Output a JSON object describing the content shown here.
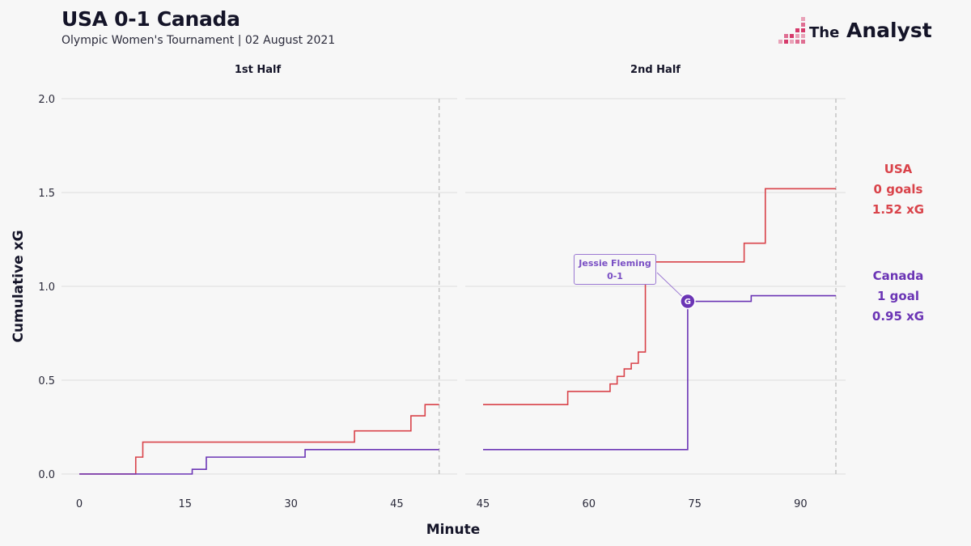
{
  "header": {
    "title": "USA 0-1 Canada",
    "subtitle": "Olympic Women's Tournament | 02 August 2021"
  },
  "brand": {
    "logo_text_small": "The",
    "logo_text_large": "Analyst",
    "accent_color": "#d63a6b"
  },
  "colors": {
    "usa": "#d9434a",
    "canada": "#6b35b5",
    "grid": "#dcdcdc"
  },
  "teams": {
    "usa": {
      "name": "USA",
      "goals": "0 goals",
      "xg": "1.52 xG"
    },
    "canada": {
      "name": "Canada",
      "goals": "1 goal",
      "xg": "0.95 xG"
    }
  },
  "annotation": {
    "player": "Jessie Fleming",
    "score": "0-1",
    "marker": "G"
  },
  "chart_data": {
    "type": "line",
    "step": true,
    "xlabel": "Minute",
    "ylabel": "Cumulative xG",
    "ylim": [
      0,
      2.0
    ],
    "y_ticks": [
      0.0,
      0.5,
      1.0,
      1.5,
      2.0
    ],
    "y_tick_labels": [
      "0.0",
      "0.5",
      "1.0",
      "1.5",
      "2.0"
    ],
    "grid": true,
    "legend": "right",
    "facets": [
      {
        "label": "1st Half",
        "xlim": [
          0,
          51
        ],
        "x_ticks": [
          0,
          15,
          30,
          45
        ],
        "end_minute": 51,
        "series": [
          {
            "name": "USA",
            "x": [
              0,
              8,
              9,
              39,
              47,
              49,
              51
            ],
            "y": [
              0,
              0.09,
              0.17,
              0.23,
              0.31,
              0.37,
              0.37
            ]
          },
          {
            "name": "Canada",
            "x": [
              0,
              16,
              18,
              32,
              51
            ],
            "y": [
              0,
              0.025,
              0.09,
              0.13,
              0.13
            ]
          }
        ]
      },
      {
        "label": "2nd Half",
        "xlim": [
          45,
          95
        ],
        "x_ticks": [
          45,
          60,
          75,
          90
        ],
        "end_minute": 95,
        "series": [
          {
            "name": "USA",
            "x": [
              45,
              57,
              63,
              64,
              65,
              66,
              67,
              68,
              82,
              85,
              95
            ],
            "y": [
              0.37,
              0.44,
              0.48,
              0.52,
              0.56,
              0.59,
              0.65,
              1.13,
              1.23,
              1.52,
              1.52
            ]
          },
          {
            "name": "Canada",
            "x": [
              45,
              74,
              83,
              95
            ],
            "y": [
              0.13,
              0.92,
              0.95,
              0.95
            ]
          }
        ],
        "goals": [
          {
            "team": "Canada",
            "minute": 74,
            "y": 0.92
          }
        ]
      }
    ]
  }
}
